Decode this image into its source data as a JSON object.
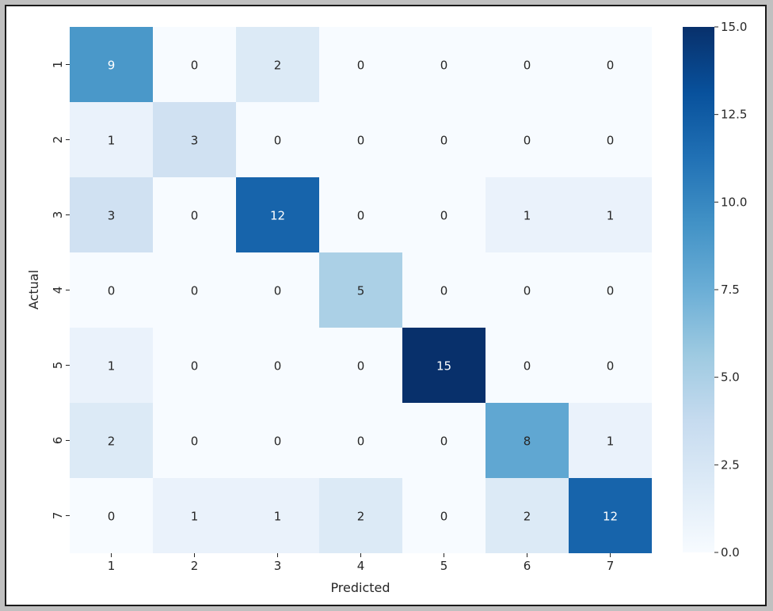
{
  "chart_data": {
    "type": "heatmap",
    "title": "",
    "xlabel": "Predicted",
    "ylabel": "Actual",
    "x_categories": [
      "1",
      "2",
      "3",
      "4",
      "5",
      "6",
      "7"
    ],
    "y_categories": [
      "1",
      "2",
      "3",
      "4",
      "5",
      "6",
      "7"
    ],
    "values": [
      [
        9,
        0,
        2,
        0,
        0,
        0,
        0
      ],
      [
        1,
        3,
        0,
        0,
        0,
        0,
        0
      ],
      [
        3,
        0,
        12,
        0,
        0,
        1,
        1
      ],
      [
        0,
        0,
        0,
        5,
        0,
        0,
        0
      ],
      [
        1,
        0,
        0,
        0,
        15,
        0,
        0
      ],
      [
        2,
        0,
        0,
        0,
        0,
        8,
        1
      ],
      [
        0,
        1,
        1,
        2,
        0,
        2,
        12
      ]
    ],
    "colorscale": "Blues",
    "colorbar": {
      "range": [
        0.0,
        15.0
      ],
      "ticks": [
        "0.0",
        "2.5",
        "5.0",
        "7.5",
        "10.0",
        "12.5",
        "15.0"
      ],
      "position": "right"
    },
    "grid": false
  }
}
